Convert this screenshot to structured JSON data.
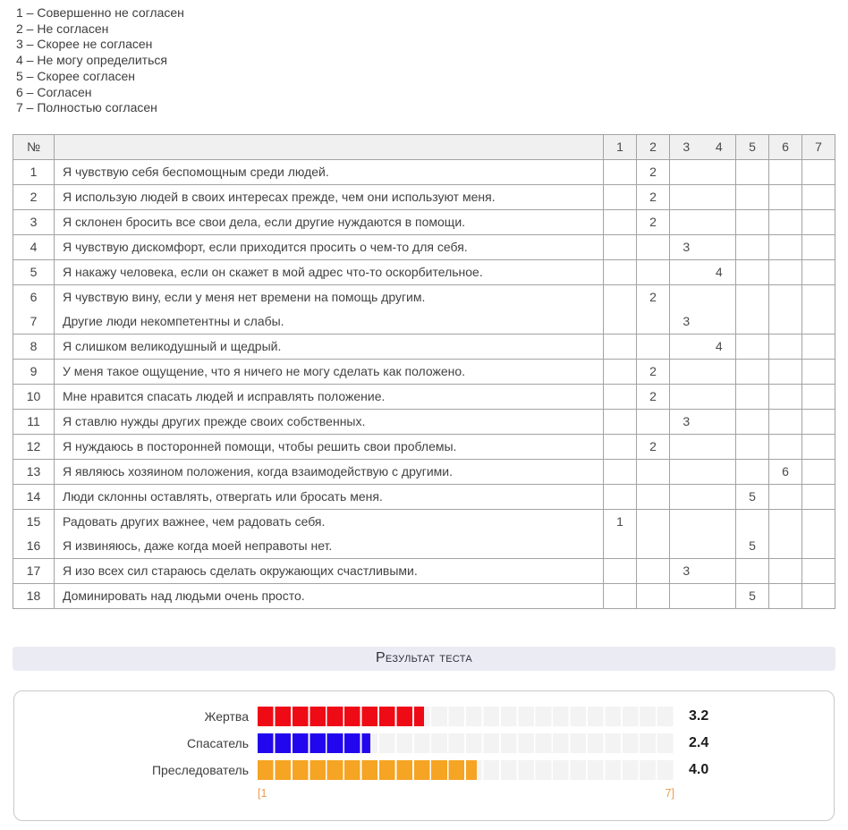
{
  "legend": [
    "1 – Совершенно не согласен",
    "2 – Не согласен",
    "3 – Скорее не согласен",
    "4 – Не могу определиться",
    "5 – Скорее согласен",
    "6 – Согласен",
    "7 – Полностью согласен"
  ],
  "table": {
    "header": {
      "num": "№",
      "cols": [
        "1",
        "2",
        "3",
        "4",
        "5",
        "6",
        "7"
      ]
    },
    "rows": [
      {
        "num": "1",
        "text": "Я чувствую себя беспомощным среди людей.",
        "answer": 2
      },
      {
        "num": "2",
        "text": "Я использую людей в своих интересах прежде, чем они используют меня.",
        "answer": 2
      },
      {
        "num": "3",
        "text": "Я склонен бросить все свои дела, если другие нуждаются в помощи.",
        "answer": 2
      },
      {
        "num": "4",
        "text": "Я чувствую дискомфорт, если приходится просить о чем-то для себя.",
        "answer": 3
      },
      {
        "num": "5",
        "text": "Я накажу человека, если он скажет в мой адрес что-то оскорбительное.",
        "answer": 4
      },
      {
        "num": "6",
        "text": "Я чувствую вину, если у меня нет времени на помощь другим.",
        "answer": 2,
        "joined_with_next": true
      },
      {
        "num": "7",
        "text": "Другие люди некомпетентны и слабы.",
        "answer": 3
      },
      {
        "num": "8",
        "text": "Я слишком великодушный и щедрый.",
        "answer": 4
      },
      {
        "num": "9",
        "text": "У меня такое ощущение, что я ничего не могу сделать как положено.",
        "answer": 2
      },
      {
        "num": "10",
        "text": "Мне нравится спасать людей и исправлять положение.",
        "answer": 2
      },
      {
        "num": "11",
        "text": "Я ставлю нужды других прежде своих собственных.",
        "answer": 3
      },
      {
        "num": "12",
        "text": "Я нуждаюсь в посторонней помощи, чтобы решить свои проблемы.",
        "answer": 2
      },
      {
        "num": "13",
        "text": "Я являюсь хозяином положения, когда взаимодействую с другими.",
        "answer": 6
      },
      {
        "num": "14",
        "text": "Люди склонны оставлять, отвергать или бросать меня.",
        "answer": 5
      },
      {
        "num": "15",
        "text": "Радовать других важнее, чем радовать себя.",
        "answer": 1,
        "joined_with_next": true
      },
      {
        "num": "16",
        "text": "Я извиняюсь, даже когда моей неправоты нет.",
        "answer": 5
      },
      {
        "num": "17",
        "text": "Я изо всех сил стараюсь сделать окружающих счастливыми.",
        "answer": 3
      },
      {
        "num": "18",
        "text": "Доминировать над людьми очень просто.",
        "answer": 5
      }
    ]
  },
  "result": {
    "heading": "Результат теста"
  },
  "chart_data": {
    "type": "bar",
    "orientation": "horizontal",
    "categories": [
      "Жертва",
      "Спасатель",
      "Преследователь"
    ],
    "values": [
      3.2,
      2.4,
      4.0
    ],
    "value_labels": [
      "3.2",
      "2.4",
      "4.0"
    ],
    "colors": [
      "#ee0b16",
      "#2206ee",
      "#f5a423"
    ],
    "fill_pct": [
      40,
      27,
      52.6
    ],
    "xlim": [
      1,
      7
    ],
    "axis_left_label": "[1",
    "axis_right_label": "7]",
    "legend_position": "none",
    "grid": false
  }
}
